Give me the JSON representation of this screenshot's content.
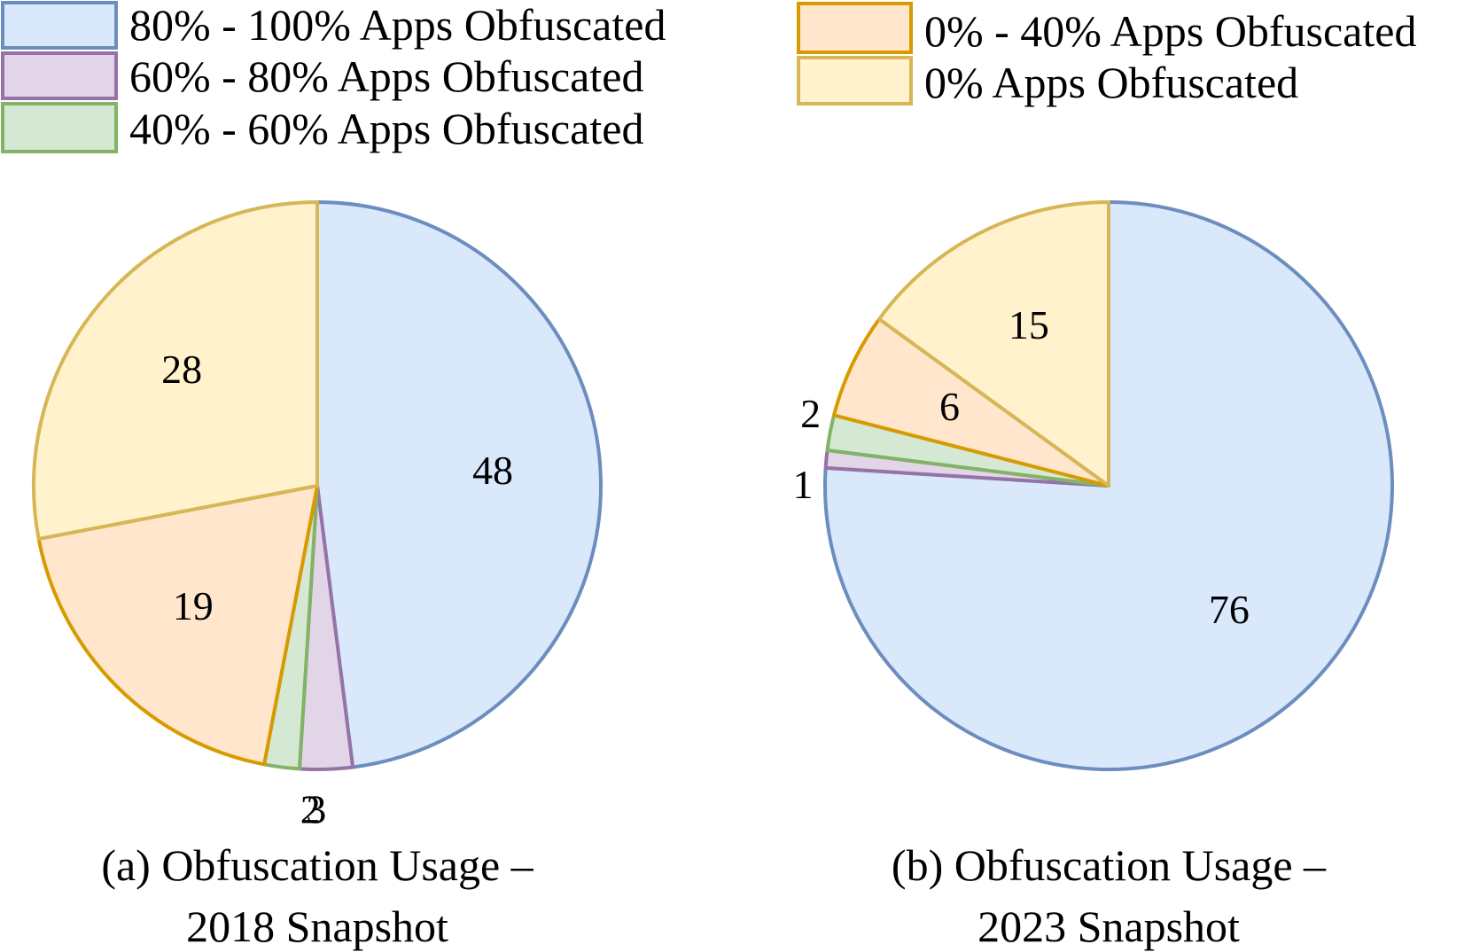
{
  "legend": [
    {
      "label": "80% - 100% Apps Obfuscated",
      "fill": "#dae8fc",
      "stroke": "#6c8ebf"
    },
    {
      "label": "60% - 80% Apps Obfuscated",
      "fill": "#e1d5e7",
      "stroke": "#9673a6"
    },
    {
      "label": "40% - 60% Apps Obfuscated",
      "fill": "#d5e8d4",
      "stroke": "#82b366"
    },
    {
      "label": "0% - 40% Apps Obfuscated",
      "fill": "#ffe6cc",
      "stroke": "#d79b00"
    },
    {
      "label": "0% Apps Obfuscated",
      "fill": "#fff2cc",
      "stroke": "#d6b656"
    }
  ],
  "chart_data": [
    {
      "type": "pie",
      "caption_line1": "(a) Obfuscation Usage –",
      "caption_line2": "2018 Snapshot",
      "categories": [
        "80% - 100% Apps Obfuscated",
        "60% - 80% Apps Obfuscated",
        "40% - 60% Apps Obfuscated",
        "0% - 40% Apps Obfuscated",
        "0% Apps Obfuscated"
      ],
      "values": [
        48,
        3,
        2,
        19,
        28
      ],
      "labels": [
        "48",
        "3",
        "2",
        "19",
        "28"
      ]
    },
    {
      "type": "pie",
      "caption_line1": "(b) Obfuscation Usage –",
      "caption_line2": "2023 Snapshot",
      "categories": [
        "80% - 100% Apps Obfuscated",
        "60% - 80% Apps Obfuscated",
        "40% - 60% Apps Obfuscated",
        "0% - 40% Apps Obfuscated",
        "0% Apps Obfuscated"
      ],
      "values": [
        76,
        1,
        2,
        6,
        15
      ],
      "labels": [
        "76",
        "1",
        "2",
        "6",
        "15"
      ]
    }
  ]
}
